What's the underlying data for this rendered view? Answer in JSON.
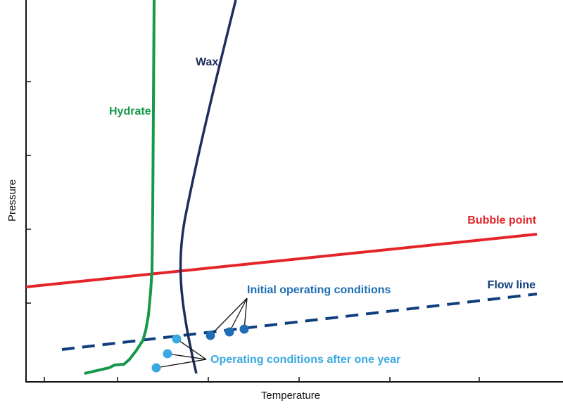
{
  "chart_data": {
    "type": "line",
    "title": "",
    "xlabel": "Temperature",
    "ylabel": "Pressure",
    "grid": false,
    "series": [
      {
        "name": "Hydrate",
        "color": "#16984a",
        "style": "solid"
      },
      {
        "name": "Wax",
        "color": "#1f2d5c",
        "style": "solid"
      },
      {
        "name": "Bubble point",
        "color": "#e42428",
        "style": "solid"
      },
      {
        "name": "Flow line",
        "color": "#0e3f7c",
        "style": "dashed"
      }
    ],
    "annotations": [
      {
        "text": "Initial operating conditions",
        "color": "#1f6db4",
        "points": 3
      },
      {
        "text": "Operating conditions after one year",
        "color": "#3aa9e1",
        "points": 3
      }
    ]
  }
}
